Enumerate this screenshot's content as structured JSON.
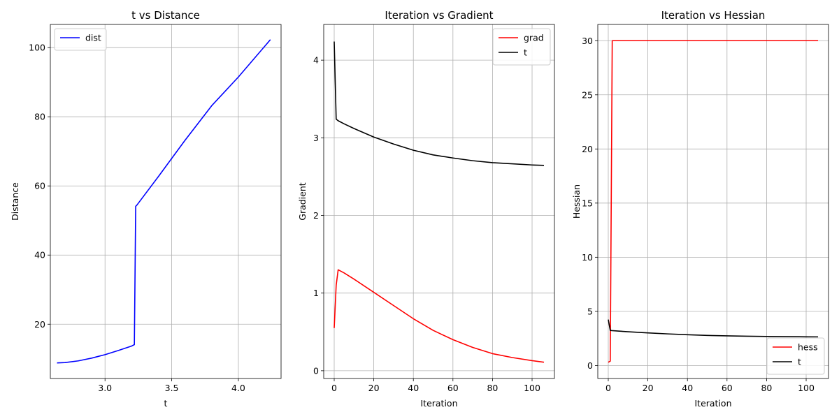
{
  "chart_data": [
    {
      "type": "line",
      "title": "t vs Distance",
      "xlabel": "t",
      "ylabel": "Distance",
      "xlim": [
        2.59,
        4.32
      ],
      "ylim": [
        4.3,
        106.7
      ],
      "xticks": [
        3.0,
        3.5,
        4.0
      ],
      "xtick_labels": [
        "3.0",
        "3.5",
        "4.0"
      ],
      "yticks": [
        20,
        40,
        60,
        80,
        100
      ],
      "ytick_labels": [
        "20",
        "40",
        "60",
        "80",
        "100"
      ],
      "grid": true,
      "legend_position": "top-left",
      "series": [
        {
          "name": "dist",
          "color": "#0000ff",
          "x": [
            2.64,
            2.7,
            2.8,
            2.9,
            3.0,
            3.1,
            3.2,
            3.22,
            3.23,
            3.24,
            3.4,
            3.6,
            3.8,
            4.0,
            4.24
          ],
          "y": [
            8.8,
            8.9,
            9.4,
            10.2,
            11.2,
            12.4,
            13.7,
            14.1,
            54.1,
            54.5,
            62.7,
            73.2,
            83.2,
            91.5,
            102.3
          ]
        }
      ]
    },
    {
      "type": "line",
      "title": "Iteration vs Gradient",
      "xlabel": "Iteration",
      "ylabel": "Gradient",
      "xlim": [
        -5.3,
        111.3
      ],
      "ylim": [
        -0.1,
        4.46
      ],
      "xticks": [
        0,
        20,
        40,
        60,
        80,
        100
      ],
      "xtick_labels": [
        "0",
        "20",
        "40",
        "60",
        "80",
        "100"
      ],
      "yticks": [
        0,
        1,
        2,
        3,
        4
      ],
      "ytick_labels": [
        "0",
        "1",
        "2",
        "3",
        "4"
      ],
      "grid": true,
      "legend_position": "top-right",
      "series": [
        {
          "name": "grad",
          "color": "#ff0000",
          "x": [
            0,
            1,
            2,
            5,
            10,
            20,
            30,
            40,
            50,
            60,
            70,
            80,
            90,
            100,
            106
          ],
          "y": [
            0.55,
            1.1,
            1.3,
            1.26,
            1.18,
            1.01,
            0.84,
            0.67,
            0.52,
            0.4,
            0.3,
            0.22,
            0.17,
            0.13,
            0.11
          ]
        },
        {
          "name": "t",
          "color": "#000000",
          "x": [
            0,
            1,
            2,
            5,
            10,
            20,
            30,
            40,
            50,
            60,
            70,
            80,
            90,
            100,
            106
          ],
          "y": [
            4.24,
            3.24,
            3.22,
            3.18,
            3.12,
            3.01,
            2.92,
            2.84,
            2.78,
            2.74,
            2.705,
            2.68,
            2.665,
            2.65,
            2.645
          ]
        }
      ]
    },
    {
      "type": "line",
      "title": "Iteration vs Hessian",
      "xlabel": "Iteration",
      "ylabel": "Hessian",
      "xlim": [
        -5.3,
        111.3
      ],
      "ylim": [
        -1.2,
        31.5
      ],
      "xticks": [
        0,
        20,
        40,
        60,
        80,
        100
      ],
      "xtick_labels": [
        "0",
        "20",
        "40",
        "60",
        "80",
        "100"
      ],
      "yticks": [
        0,
        5,
        10,
        15,
        20,
        25,
        30
      ],
      "ytick_labels": [
        "0",
        "5",
        "10",
        "15",
        "20",
        "25",
        "30"
      ],
      "grid": true,
      "legend_position": "bottom-right",
      "series": [
        {
          "name": "hess",
          "color": "#ff0000",
          "x": [
            0,
            1,
            2,
            3,
            106
          ],
          "y": [
            0.3,
            0.4,
            30,
            30,
            30
          ]
        },
        {
          "name": "t",
          "color": "#000000",
          "x": [
            0,
            1,
            2,
            5,
            10,
            20,
            30,
            40,
            50,
            60,
            70,
            80,
            90,
            100,
            106
          ],
          "y": [
            4.24,
            3.24,
            3.22,
            3.18,
            3.12,
            3.01,
            2.92,
            2.84,
            2.78,
            2.74,
            2.705,
            2.68,
            2.665,
            2.65,
            2.645
          ]
        }
      ]
    }
  ]
}
